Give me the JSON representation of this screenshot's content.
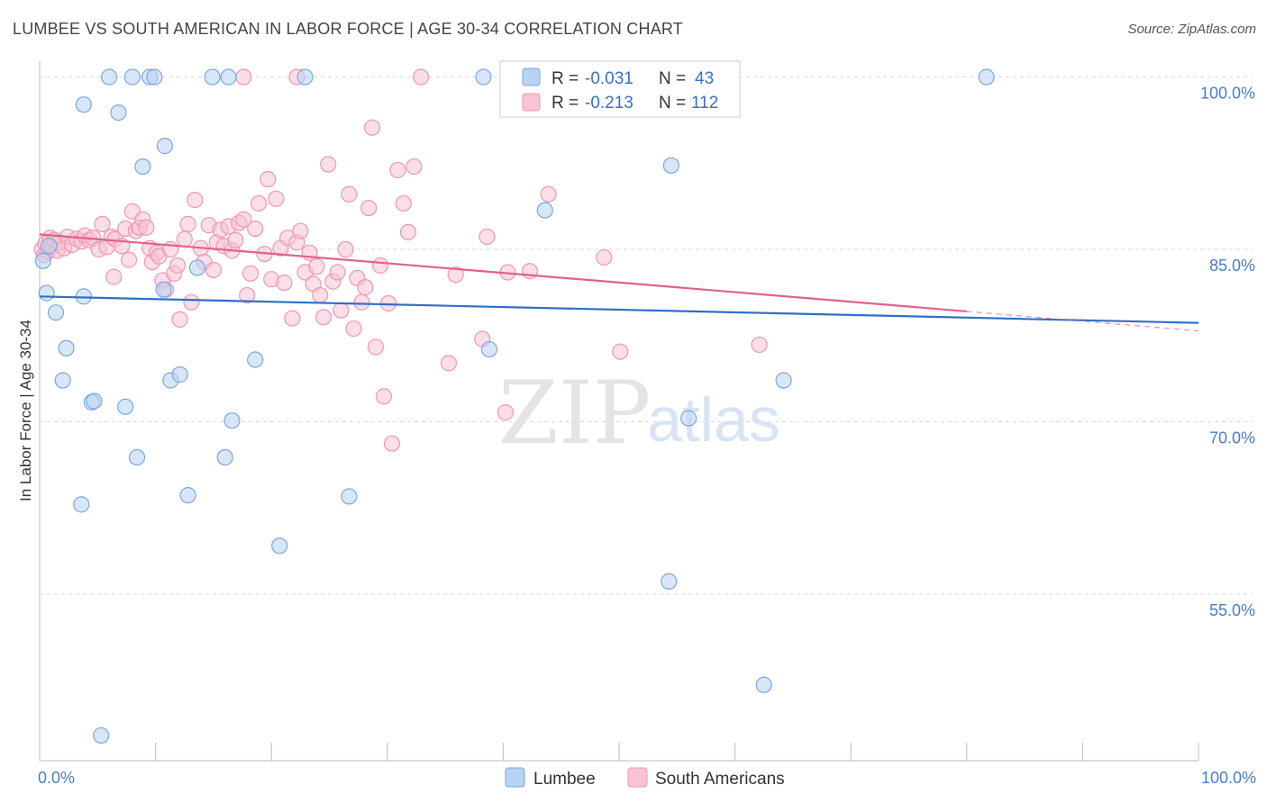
{
  "header": {
    "title": "LUMBEE VS SOUTH AMERICAN IN LABOR FORCE | AGE 30-34 CORRELATION CHART",
    "source": "Source: ZipAtlas.com"
  },
  "watermark": {
    "zip": "ZIP",
    "atlas": "atlas"
  },
  "legend": {
    "rows": [
      {
        "r_label": "R =",
        "r_value": "-0.031",
        "n_label": "N =",
        "n_value": "43"
      },
      {
        "r_label": "R =",
        "r_value": "-0.213",
        "n_label": "N =",
        "n_value": "112"
      }
    ]
  },
  "colors": {
    "lumbee_fill": "#b8d3f3",
    "lumbee_stroke": "#7aa7df",
    "lumbee_line": "#2f6fc7",
    "south_fill": "#f8c3d3",
    "south_stroke": "#ee97b2",
    "south_line": "#e2608c",
    "grid": "#d9d9d9",
    "axis_text": "#4a7cc9"
  },
  "chart_data": {
    "type": "scatter",
    "title": "LUMBEE VS SOUTH AMERICAN IN LABOR FORCE | AGE 30-34 CORRELATION CHART",
    "xlabel": "",
    "ylabel": "In Labor Force | Age 30-34",
    "xlim": [
      0,
      100
    ],
    "ylim": [
      40.5,
      102
    ],
    "y_ticks": [
      {
        "value": 100,
        "label": "100.0%"
      },
      {
        "value": 85,
        "label": "85.0%"
      },
      {
        "value": 70,
        "label": "70.0%"
      },
      {
        "value": 55,
        "label": "55.0%"
      }
    ],
    "x_tick_labels": [
      {
        "value": 0,
        "label": "0.0%"
      },
      {
        "value": 100,
        "label": "100.0%"
      }
    ],
    "grid": true,
    "legend_position": "top-center",
    "series": [
      {
        "name": "Lumbee",
        "r": -0.031,
        "n": 43,
        "trend": {
          "x0": 0,
          "y0": 80.9,
          "x1": 100,
          "y1": 78.6
        },
        "points": [
          [
            0.3,
            84.0
          ],
          [
            0.6,
            81.2
          ],
          [
            0.8,
            85.3
          ],
          [
            1.4,
            79.5
          ],
          [
            2.3,
            76.4
          ],
          [
            2.0,
            73.6
          ],
          [
            3.8,
            97.6
          ],
          [
            3.6,
            62.8
          ],
          [
            3.8,
            80.9
          ],
          [
            4.5,
            71.7
          ],
          [
            4.7,
            71.8
          ],
          [
            5.3,
            42.7
          ],
          [
            6.0,
            100.0
          ],
          [
            6.8,
            96.9
          ],
          [
            7.4,
            71.3
          ],
          [
            8.0,
            100.0
          ],
          [
            8.4,
            66.9
          ],
          [
            8.9,
            92.2
          ],
          [
            9.5,
            100.0
          ],
          [
            9.9,
            100.0
          ],
          [
            10.8,
            94.0
          ],
          [
            10.7,
            81.5
          ],
          [
            11.3,
            73.6
          ],
          [
            12.1,
            74.1
          ],
          [
            12.8,
            63.6
          ],
          [
            13.6,
            83.4
          ],
          [
            14.9,
            100.0
          ],
          [
            16.3,
            100.0
          ],
          [
            16.0,
            66.9
          ],
          [
            16.6,
            70.1
          ],
          [
            18.6,
            75.4
          ],
          [
            20.7,
            59.2
          ],
          [
            22.9,
            100.0
          ],
          [
            26.7,
            63.5
          ],
          [
            38.3,
            100.0
          ],
          [
            38.8,
            76.3
          ],
          [
            43.6,
            88.4
          ],
          [
            54.5,
            92.3
          ],
          [
            54.3,
            56.1
          ],
          [
            56.0,
            70.3
          ],
          [
            62.5,
            47.1
          ],
          [
            64.2,
            73.6
          ],
          [
            81.7,
            100.0
          ]
        ]
      },
      {
        "name": "South Americans",
        "r": -0.213,
        "n": 112,
        "trend": {
          "x0": 0,
          "y0": 86.3,
          "x1": 80,
          "y1": 79.6,
          "dash_to_x": 100,
          "dash_to_y": 77.9
        },
        "points": [
          [
            0.2,
            85.0
          ],
          [
            0.4,
            84.5
          ],
          [
            0.5,
            85.5
          ],
          [
            0.7,
            84.8
          ],
          [
            0.9,
            86.0
          ],
          [
            1.1,
            85.2
          ],
          [
            1.3,
            85.8
          ],
          [
            1.5,
            84.9
          ],
          [
            1.7,
            85.6
          ],
          [
            2.1,
            85.1
          ],
          [
            2.4,
            86.1
          ],
          [
            2.8,
            85.4
          ],
          [
            3.2,
            85.9
          ],
          [
            3.6,
            85.7
          ],
          [
            3.9,
            86.2
          ],
          [
            4.3,
            85.8
          ],
          [
            4.6,
            86.0
          ],
          [
            5.1,
            85.0
          ],
          [
            5.4,
            87.2
          ],
          [
            5.8,
            85.2
          ],
          [
            6.2,
            86.1
          ],
          [
            6.5,
            85.9
          ],
          [
            6.4,
            82.6
          ],
          [
            7.1,
            85.3
          ],
          [
            7.4,
            86.8
          ],
          [
            7.7,
            84.1
          ],
          [
            8.0,
            88.3
          ],
          [
            8.3,
            86.6
          ],
          [
            8.6,
            86.9
          ],
          [
            8.9,
            87.6
          ],
          [
            9.2,
            86.9
          ],
          [
            9.5,
            85.1
          ],
          [
            9.7,
            83.9
          ],
          [
            10.1,
            84.7
          ],
          [
            10.3,
            84.4
          ],
          [
            10.6,
            82.3
          ],
          [
            10.9,
            81.5
          ],
          [
            11.3,
            85.0
          ],
          [
            11.6,
            82.9
          ],
          [
            11.9,
            83.6
          ],
          [
            12.1,
            78.9
          ],
          [
            12.5,
            85.9
          ],
          [
            12.8,
            87.2
          ],
          [
            13.1,
            80.4
          ],
          [
            13.4,
            89.3
          ],
          [
            13.9,
            85.1
          ],
          [
            14.2,
            83.9
          ],
          [
            14.6,
            87.1
          ],
          [
            15.0,
            83.2
          ],
          [
            15.3,
            85.6
          ],
          [
            15.6,
            86.7
          ],
          [
            15.9,
            85.3
          ],
          [
            16.3,
            87.0
          ],
          [
            16.6,
            84.9
          ],
          [
            16.9,
            85.8
          ],
          [
            17.2,
            87.3
          ],
          [
            17.6,
            87.6
          ],
          [
            17.9,
            81.0
          ],
          [
            18.2,
            82.9
          ],
          [
            18.6,
            86.8
          ],
          [
            18.9,
            89.0
          ],
          [
            19.4,
            84.6
          ],
          [
            19.7,
            91.1
          ],
          [
            20.0,
            82.4
          ],
          [
            20.4,
            89.4
          ],
          [
            20.8,
            85.1
          ],
          [
            21.1,
            82.1
          ],
          [
            21.4,
            86.0
          ],
          [
            21.8,
            79.0
          ],
          [
            22.2,
            85.6
          ],
          [
            22.5,
            86.6
          ],
          [
            22.9,
            83.0
          ],
          [
            23.3,
            84.7
          ],
          [
            23.6,
            82.0
          ],
          [
            23.9,
            83.5
          ],
          [
            24.2,
            81.0
          ],
          [
            24.5,
            79.1
          ],
          [
            24.9,
            92.4
          ],
          [
            25.3,
            82.2
          ],
          [
            25.7,
            83.0
          ],
          [
            26.0,
            79.7
          ],
          [
            26.4,
            85.0
          ],
          [
            26.7,
            89.8
          ],
          [
            27.1,
            78.1
          ],
          [
            27.4,
            82.5
          ],
          [
            27.8,
            80.4
          ],
          [
            28.1,
            81.7
          ],
          [
            28.4,
            88.6
          ],
          [
            28.7,
            95.6
          ],
          [
            29.0,
            76.5
          ],
          [
            29.4,
            83.6
          ],
          [
            29.7,
            72.2
          ],
          [
            30.1,
            80.3
          ],
          [
            30.4,
            68.1
          ],
          [
            30.9,
            91.9
          ],
          [
            31.4,
            89.0
          ],
          [
            31.8,
            86.5
          ],
          [
            32.3,
            92.2
          ],
          [
            32.9,
            100.0
          ],
          [
            35.3,
            75.1
          ],
          [
            35.9,
            82.8
          ],
          [
            38.2,
            77.2
          ],
          [
            38.6,
            86.1
          ],
          [
            40.2,
            70.8
          ],
          [
            40.4,
            83.0
          ],
          [
            42.3,
            83.1
          ],
          [
            43.9,
            89.8
          ],
          [
            48.7,
            84.3
          ],
          [
            50.1,
            76.1
          ],
          [
            62.1,
            76.7
          ],
          [
            17.6,
            100.0
          ],
          [
            22.2,
            100.0
          ]
        ]
      }
    ]
  },
  "bottom_legend": {
    "items": [
      "Lumbee",
      "South Americans"
    ]
  }
}
